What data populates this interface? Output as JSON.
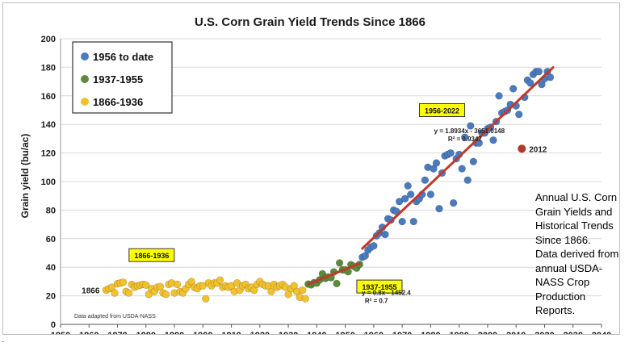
{
  "chart_data": {
    "type": "scatter",
    "title": "U.S. Corn Grain Yield Trends Since 1866",
    "xlabel": "",
    "ylabel": "Grain yield (bu/ac)",
    "xlim": [
      1850,
      2040
    ],
    "ylim": [
      0,
      200
    ],
    "x_ticks": [
      "1850",
      "1860",
      "1870",
      "1880",
      "1890",
      "1900",
      "1910",
      "1920",
      "1930",
      "1940",
      "1950",
      "1960",
      "1970",
      "1980",
      "1990",
      "2000",
      "2010",
      "2020",
      "2030",
      "2040"
    ],
    "y_ticks": [
      "0",
      "20",
      "40",
      "60",
      "80",
      "100",
      "120",
      "140",
      "160",
      "180",
      "200"
    ],
    "grid": true,
    "legend_position": "top-left",
    "series": [
      {
        "name": "1956 to date",
        "color": "#4a7bbf",
        "x": [
          1956,
          1957,
          1958,
          1959,
          1960,
          1961,
          1962,
          1963,
          1964,
          1965,
          1966,
          1967,
          1968,
          1969,
          1970,
          1971,
          1972,
          1973,
          1974,
          1975,
          1976,
          1977,
          1978,
          1979,
          1980,
          1981,
          1982,
          1983,
          1984,
          1985,
          1986,
          1987,
          1988,
          1989,
          1990,
          1991,
          1992,
          1993,
          1994,
          1995,
          1996,
          1997,
          1998,
          1999,
          2000,
          2001,
          2002,
          2003,
          2004,
          2005,
          2006,
          2007,
          2008,
          2009,
          2010,
          2011,
          2013,
          2014,
          2015,
          2016,
          2017,
          2018,
          2019,
          2020,
          2021,
          2022
        ],
        "y": [
          47,
          48,
          52,
          54,
          55,
          62,
          64,
          68,
          63,
          74,
          73,
          80,
          79,
          86,
          72,
          88,
          97,
          91,
          72,
          86,
          88,
          91,
          101,
          110,
          91,
          109,
          113,
          81,
          106,
          118,
          119,
          120,
          85,
          116,
          119,
          109,
          131,
          101,
          139,
          114,
          127,
          127,
          134,
          134,
          137,
          138,
          129,
          142,
          160,
          148,
          149,
          150,
          154,
          165,
          153,
          147,
          159,
          171,
          169,
          175,
          177,
          177,
          168,
          172,
          177,
          173
        ]
      },
      {
        "name": "1937-1955",
        "color": "#5b8a3a",
        "x": [
          1937,
          1938,
          1939,
          1940,
          1941,
          1942,
          1943,
          1944,
          1945,
          1946,
          1947,
          1948,
          1949,
          1950,
          1951,
          1952,
          1953,
          1954,
          1955
        ],
        "y": [
          28.2,
          27.7,
          29.2,
          28.9,
          31.2,
          35.4,
          32.2,
          33.2,
          32.7,
          36.7,
          28.6,
          43.0,
          38.2,
          38.2,
          36.9,
          41.8,
          40.7,
          39.4,
          42.0
        ]
      },
      {
        "name": "1866-1936",
        "color": "#f2c12e",
        "x": [
          1866,
          1867,
          1868,
          1869,
          1870,
          1871,
          1872,
          1873,
          1874,
          1875,
          1876,
          1877,
          1878,
          1879,
          1880,
          1881,
          1882,
          1883,
          1884,
          1885,
          1886,
          1887,
          1888,
          1889,
          1890,
          1891,
          1892,
          1893,
          1894,
          1895,
          1896,
          1897,
          1898,
          1899,
          1900,
          1901,
          1902,
          1903,
          1904,
          1905,
          1906,
          1907,
          1908,
          1909,
          1910,
          1911,
          1912,
          1913,
          1914,
          1915,
          1916,
          1917,
          1918,
          1919,
          1920,
          1921,
          1922,
          1923,
          1924,
          1925,
          1926,
          1927,
          1928,
          1929,
          1930,
          1931,
          1932,
          1933,
          1934,
          1935,
          1936
        ],
        "y": [
          24,
          25,
          26,
          22,
          28.5,
          29,
          29.5,
          23,
          22,
          28,
          26,
          27,
          27.5,
          28,
          27.5,
          21,
          25,
          23,
          26,
          26.5,
          22,
          21,
          28,
          29,
          22,
          28,
          23,
          22,
          25,
          28,
          30,
          26,
          25,
          27,
          27,
          18,
          29,
          27,
          29,
          29,
          31,
          26,
          27,
          26,
          27,
          23,
          29,
          24,
          27,
          28,
          25,
          26,
          24,
          28,
          30,
          28,
          27,
          27,
          23,
          28,
          26,
          27,
          28,
          26,
          21,
          25,
          27,
          23,
          19,
          24,
          18
        ]
      }
    ],
    "trend_lines": [
      {
        "x_range": [
          1937,
          1955
        ],
        "y_range": [
          28.2,
          42.6
        ],
        "color": "#c0392b",
        "equation": "y = 0.8x - 1452.4",
        "r2": "R² = 0.7"
      },
      {
        "x_range": [
          1956,
          2023
        ],
        "y_range": [
          53.1,
          179.9
        ],
        "color": "#c0392b",
        "equation": "y = 1.8934x - 3651.0148",
        "r2": "R² = 0.9347"
      }
    ],
    "outlier": {
      "x": 2012,
      "y": 123,
      "label": "2012",
      "color": "#b03a2e"
    },
    "annotations": [
      {
        "text": "1866-1936",
        "x": 1882,
        "y": 48.5
      },
      {
        "text": "1937-1955",
        "x": 1962,
        "y": 26.5
      },
      {
        "text": "1956-2022",
        "x": 1984,
        "y": 150
      }
    ],
    "left_label": {
      "text": "1866",
      "x": 1866,
      "y": 24
    },
    "source_note": "Data adapted from USDA-NASS"
  },
  "caption": {
    "lines": [
      " Annual U.S. Corn",
      "Grain Yields and",
      "Historical Trends",
      "Since 1866.",
      "Data derived from",
      "annual  USDA-",
      "NASS Crop",
      "Production",
      "Reports."
    ]
  },
  "corner_mark": "-"
}
